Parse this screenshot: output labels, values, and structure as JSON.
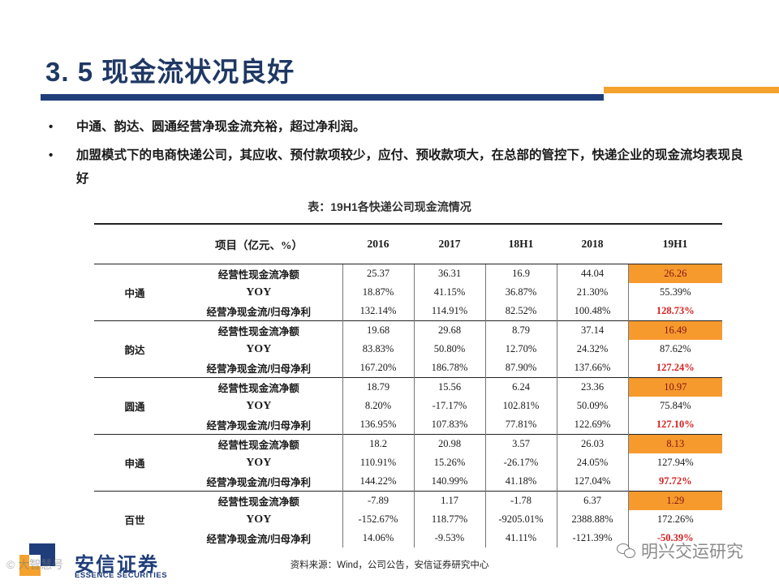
{
  "title": "3. 5 现金流状况良好",
  "bullets": [
    "中通、韵达、圆通经营净现金流充裕，超过净利润。",
    "加盟模式下的电商快递公司，其应收、预付款项较少，应付、预收款项大，在总部的管控下，快递企业的现金流均表现良好"
  ],
  "bullet_marker": "•",
  "table": {
    "caption": "表：19H1各快递公司现金流情况",
    "header": [
      "项目（亿元、%）",
      "2016",
      "2017",
      "18H1",
      "2018",
      "19H1"
    ],
    "groups": [
      {
        "company": "中通",
        "rows": [
          {
            "item": "经营性现金流净额",
            "values": [
              "25.37",
              "36.31",
              "16.9",
              "44.04",
              "26.26"
            ]
          },
          {
            "item": "YOY",
            "values": [
              "18.87%",
              "41.15%",
              "36.87%",
              "21.30%",
              "55.39%"
            ]
          },
          {
            "item": "经营净现金流/归母净利",
            "values": [
              "132.14%",
              "114.91%",
              "82.52%",
              "100.48%",
              "128.73%"
            ]
          }
        ]
      },
      {
        "company": "韵达",
        "rows": [
          {
            "item": "经营性现金流净额",
            "values": [
              "19.68",
              "29.68",
              "8.79",
              "37.14",
              "16.49"
            ]
          },
          {
            "item": "YOY",
            "values": [
              "83.83%",
              "50.80%",
              "12.70%",
              "24.32%",
              "87.62%"
            ]
          },
          {
            "item": "经营净现金流/归母净利",
            "values": [
              "167.20%",
              "186.78%",
              "87.90%",
              "137.66%",
              "127.24%"
            ]
          }
        ]
      },
      {
        "company": "圆通",
        "rows": [
          {
            "item": "经营性现金流净额",
            "values": [
              "18.79",
              "15.56",
              "6.24",
              "23.36",
              "10.97"
            ]
          },
          {
            "item": "YOY",
            "values": [
              "8.20%",
              "-17.17%",
              "102.81%",
              "50.09%",
              "75.84%"
            ]
          },
          {
            "item": "经营净现金流/归母净利",
            "values": [
              "136.95%",
              "107.83%",
              "77.81%",
              "122.69%",
              "127.10%"
            ]
          }
        ]
      },
      {
        "company": "申通",
        "rows": [
          {
            "item": "经营性现金流净额",
            "values": [
              "18.2",
              "20.98",
              "3.57",
              "26.03",
              "8.13"
            ]
          },
          {
            "item": "YOY",
            "values": [
              "110.91%",
              "15.26%",
              "-26.17%",
              "24.05%",
              "127.94%"
            ]
          },
          {
            "item": "经营净现金流/归母净利",
            "values": [
              "144.22%",
              "140.99%",
              "41.18%",
              "127.04%",
              "97.72%"
            ]
          }
        ]
      },
      {
        "company": "百世",
        "rows": [
          {
            "item": "经营性现金流净额",
            "values": [
              "-7.89",
              "1.17",
              "-1.78",
              "6.37",
              "1.29"
            ]
          },
          {
            "item": "YOY",
            "values": [
              "-152.67%",
              "118.77%",
              "-9205.01%",
              "2388.88%",
              "172.26%"
            ]
          },
          {
            "item": "经营净现金流/归母净利",
            "values": [
              "14.06%",
              "-9.53%",
              "41.11%",
              "-121.39%",
              "-50.39%"
            ]
          }
        ]
      }
    ]
  },
  "source": "资料来源：Wind，公司公告，安信证券研究中心",
  "logo": {
    "name": "安信证券",
    "english": "ESSENCE SECURITIES"
  },
  "watermark_right": "明兴交运研究",
  "watermark_left": "© 大智慧号",
  "colors": {
    "title_blue": "#1f3864",
    "bar_blue": "#1f3d7a",
    "bar_orange": "#f4a22d",
    "highlight_fill": "#f79a2e",
    "highlight_text_red": "#d81e1e"
  }
}
